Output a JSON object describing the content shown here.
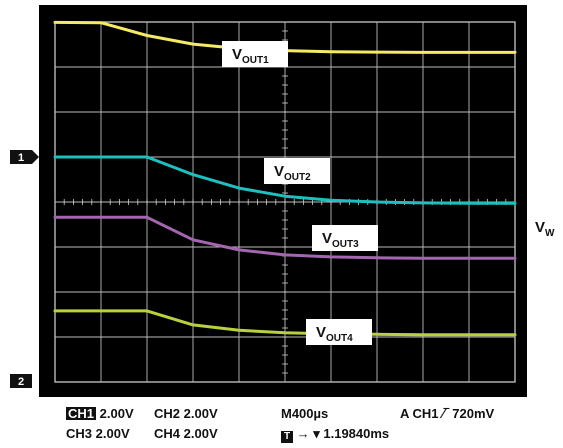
{
  "chart_data": {
    "type": "line",
    "title": "",
    "xlabel": "",
    "ylabel": "",
    "grid": true,
    "x": [
      0,
      0.4,
      0.8,
      1.2,
      1.6,
      2.0,
      2.4,
      2.8,
      3.2,
      3.6,
      4.0
    ],
    "series": [
      {
        "name": "V_OUT1",
        "color": "#f5ea64",
        "values": [
          5.98,
          5.97,
          5.4,
          5.02,
          4.82,
          4.73,
          4.68,
          4.66,
          4.65,
          4.65,
          4.65
        ]
      },
      {
        "name": "V_OUT2",
        "color": "#1fbfbf",
        "values": [
          0,
          0,
          0,
          -0.78,
          -1.38,
          -1.74,
          -1.92,
          -2.0,
          -2.04,
          -2.06,
          -2.06
        ]
      },
      {
        "name": "V_OUT3",
        "color": "#a466b0",
        "values": [
          -2.68,
          -2.68,
          -2.68,
          -3.68,
          -4.13,
          -4.35,
          -4.44,
          -4.48,
          -4.5,
          -4.5,
          -4.5
        ]
      },
      {
        "name": "V_OUT4",
        "color": "#b8d13d",
        "values": [
          -6.84,
          -6.84,
          -6.84,
          -7.46,
          -7.7,
          -7.81,
          -7.86,
          -7.88,
          -7.9,
          -7.9,
          -7.9
        ]
      }
    ],
    "labels": {
      "v1": {
        "main": "V",
        "sub": "OUT1"
      },
      "v2": {
        "main": "V",
        "sub": "OUT2"
      },
      "v3": {
        "main": "V",
        "sub": "OUT3"
      },
      "v4": {
        "main": "V",
        "sub": "OUT4"
      }
    },
    "right_label": {
      "main": "V",
      "sub": "W"
    },
    "channel_markers": {
      "ch1": "1",
      "ch2": "2"
    }
  },
  "readout": {
    "ch1_badge": "CH1",
    "ch1_scale": "2.00V",
    "ch2": "CH2",
    "ch2_scale": "2.00V",
    "timebase": "M400µs",
    "trigger": "A  CH1 ∕‾ 720mV",
    "ch3": "CH3",
    "ch3_scale": "2.00V",
    "ch4": "CH4",
    "ch4_scale": "2.00V",
    "trigger_box": "T",
    "trigger_pos": "→ ▾ 1.19840ms"
  }
}
